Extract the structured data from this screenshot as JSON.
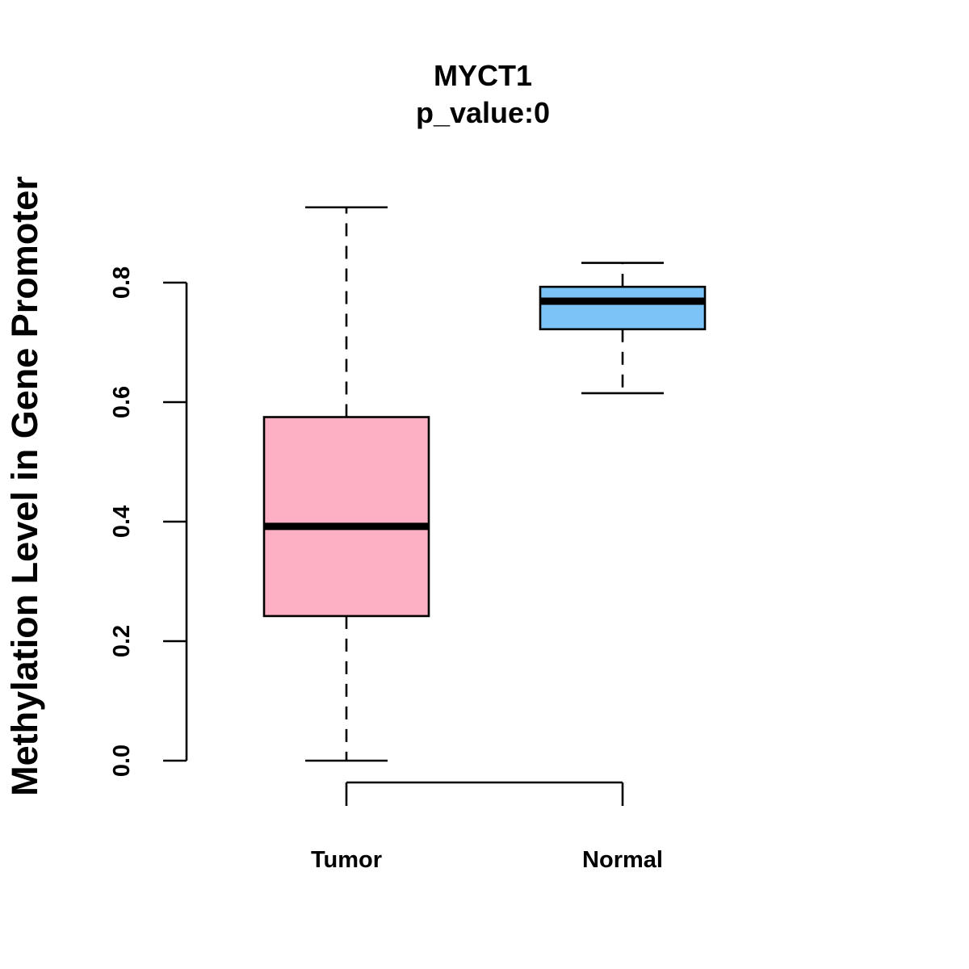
{
  "chart_data": {
    "type": "boxplot",
    "title": "MYCT1",
    "subtitle": "p_value:0",
    "xlabel": "",
    "ylabel": "Methylation Level in Gene Promoter",
    "ylim": [
      0.0,
      0.8
    ],
    "yticks": [
      0.0,
      0.2,
      0.4,
      0.6,
      0.8
    ],
    "ytick_labels": [
      "0.0",
      "0.2",
      "0.4",
      "0.6",
      "0.8"
    ],
    "categories": [
      "Tumor",
      "Normal"
    ],
    "series": [
      {
        "name": "Tumor",
        "color": "#FDB0C3",
        "whisker_low": 0.0,
        "q1": 0.242,
        "median": 0.392,
        "q3": 0.575,
        "whisker_high": 0.926
      },
      {
        "name": "Normal",
        "color": "#7CC3F8",
        "whisker_low": 0.615,
        "q1": 0.722,
        "median": 0.769,
        "q3": 0.793,
        "whisker_high": 0.833
      }
    ]
  }
}
